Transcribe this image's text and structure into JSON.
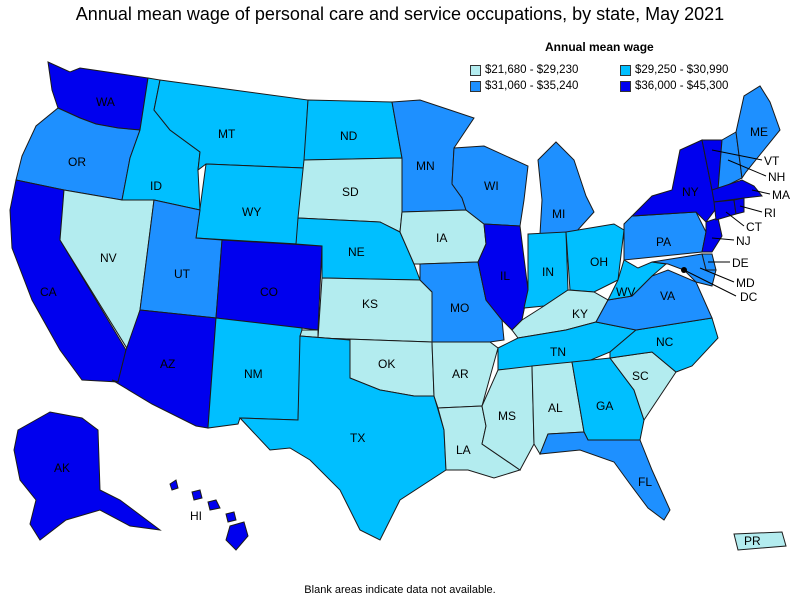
{
  "title": "Annual mean wage of personal care and service occupations, by state, May 2021",
  "legend": {
    "title": "Annual mean wage",
    "items": [
      {
        "label": "$21,680 - $29,230",
        "color": "#b3ecef"
      },
      {
        "label": "$29,250 - $30,990",
        "color": "#00bfff"
      },
      {
        "label": "$31,060 - $35,240",
        "color": "#1e90ff"
      },
      {
        "label": "$36,000 - $45,300",
        "color": "#0000ee"
      }
    ]
  },
  "footnote": "Blank areas indicate data not available.",
  "states": {
    "WA": {
      "label": "WA",
      "tier": 3
    },
    "OR": {
      "label": "OR",
      "tier": 2
    },
    "CA": {
      "label": "CA",
      "tier": 3
    },
    "NV": {
      "label": "NV",
      "tier": 0
    },
    "ID": {
      "label": "ID",
      "tier": 1
    },
    "MT": {
      "label": "MT",
      "tier": 1
    },
    "WY": {
      "label": "WY",
      "tier": 1
    },
    "UT": {
      "label": "UT",
      "tier": 2
    },
    "AZ": {
      "label": "AZ",
      "tier": 3
    },
    "CO": {
      "label": "CO",
      "tier": 3
    },
    "NM": {
      "label": "NM",
      "tier": 1
    },
    "ND": {
      "label": "ND",
      "tier": 1
    },
    "SD": {
      "label": "SD",
      "tier": 0
    },
    "NE": {
      "label": "NE",
      "tier": 1
    },
    "KS": {
      "label": "KS",
      "tier": 0
    },
    "OK": {
      "label": "OK",
      "tier": 0
    },
    "TX": {
      "label": "TX",
      "tier": 1
    },
    "MN": {
      "label": "MN",
      "tier": 2
    },
    "IA": {
      "label": "IA",
      "tier": 0
    },
    "MO": {
      "label": "MO",
      "tier": 2
    },
    "AR": {
      "label": "AR",
      "tier": 0
    },
    "LA": {
      "label": "LA",
      "tier": 0
    },
    "WI": {
      "label": "WI",
      "tier": 2
    },
    "IL": {
      "label": "IL",
      "tier": 3
    },
    "MI": {
      "label": "MI",
      "tier": 2
    },
    "IN": {
      "label": "IN",
      "tier": 1
    },
    "OH": {
      "label": "OH",
      "tier": 1
    },
    "KY": {
      "label": "KY",
      "tier": 0
    },
    "TN": {
      "label": "TN",
      "tier": 1
    },
    "MS": {
      "label": "MS",
      "tier": 0
    },
    "AL": {
      "label": "AL",
      "tier": 0
    },
    "GA": {
      "label": "GA",
      "tier": 1
    },
    "FL": {
      "label": "FL",
      "tier": 2
    },
    "SC": {
      "label": "SC",
      "tier": 0
    },
    "NC": {
      "label": "NC",
      "tier": 1
    },
    "VA": {
      "label": "VA",
      "tier": 2
    },
    "WV": {
      "label": "WV",
      "tier": 1
    },
    "PA": {
      "label": "PA",
      "tier": 2
    },
    "NY": {
      "label": "NY",
      "tier": 3
    },
    "VT": {
      "label": "VT",
      "tier": 3
    },
    "NH": {
      "label": "NH",
      "tier": 2
    },
    "ME": {
      "label": "ME",
      "tier": 2
    },
    "MA": {
      "label": "MA",
      "tier": 3
    },
    "RI": {
      "label": "RI",
      "tier": 3
    },
    "CT": {
      "label": "CT",
      "tier": 3
    },
    "NJ": {
      "label": "NJ",
      "tier": 3
    },
    "DE": {
      "label": "DE",
      "tier": 2
    },
    "MD": {
      "label": "MD",
      "tier": 2
    },
    "DC": {
      "label": "DC",
      "tier": 3
    },
    "AK": {
      "label": "AK",
      "tier": 3
    },
    "HI": {
      "label": "HI",
      "tier": 3
    },
    "PR": {
      "label": "PR",
      "tier": 0
    }
  }
}
